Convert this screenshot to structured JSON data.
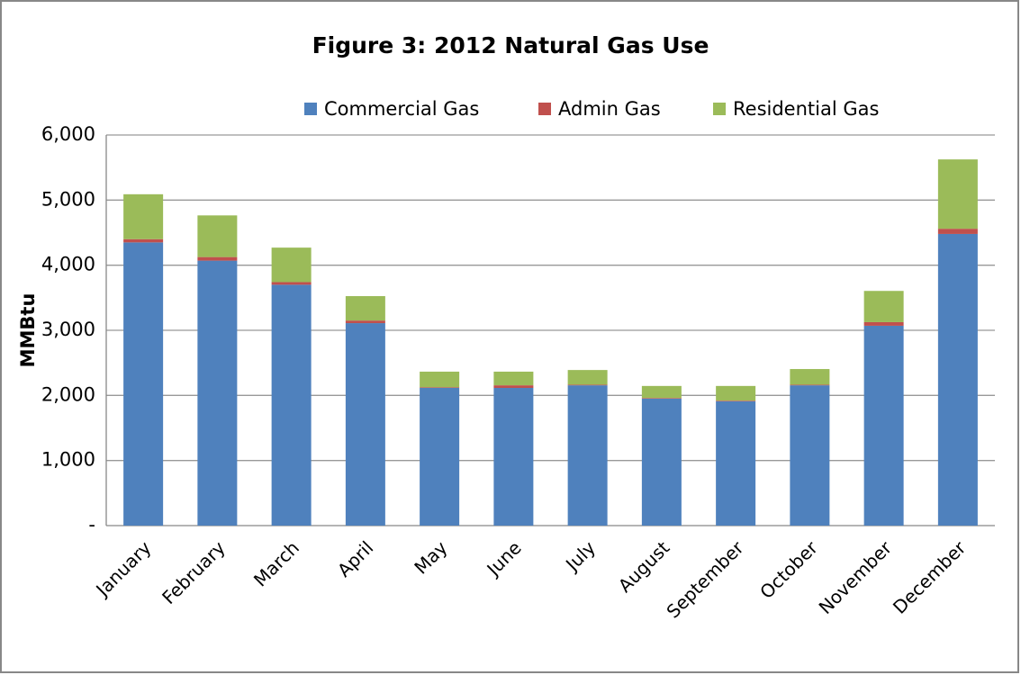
{
  "chart_data": {
    "type": "stacked_bar",
    "title": "Figure 3: 2012 Natural Gas Use",
    "y_label": "MMBtu",
    "categories": [
      "January",
      "February",
      "March",
      "April",
      "May",
      "June",
      "July",
      "August",
      "September",
      "October",
      "November",
      "December"
    ],
    "series": [
      {
        "name": "Commercial Gas",
        "color": "#4f81bd",
        "values": [
          4350,
          4070,
          3700,
          3110,
          2115,
          2115,
          2155,
          1950,
          1910,
          2155,
          3070,
          4480
        ]
      },
      {
        "name": "Admin Gas",
        "color": "#c0504d",
        "values": [
          50,
          55,
          40,
          40,
          10,
          40,
          10,
          10,
          10,
          10,
          55,
          80
        ]
      },
      {
        "name": "Residential Gas",
        "color": "#9bbb59",
        "values": [
          690,
          640,
          530,
          375,
          240,
          210,
          225,
          185,
          225,
          240,
          480,
          1065
        ]
      }
    ],
    "ylim": [
      0,
      6000
    ],
    "yticks": [
      {
        "value": 0,
        "label": "-"
      },
      {
        "value": 1000,
        "label": "1,000"
      },
      {
        "value": 2000,
        "label": "2,000"
      },
      {
        "value": 3000,
        "label": "3,000"
      },
      {
        "value": 4000,
        "label": "4,000"
      },
      {
        "value": 5000,
        "label": "5,000"
      },
      {
        "value": 6000,
        "label": "6,000"
      }
    ],
    "grid": true,
    "legend": "top"
  }
}
